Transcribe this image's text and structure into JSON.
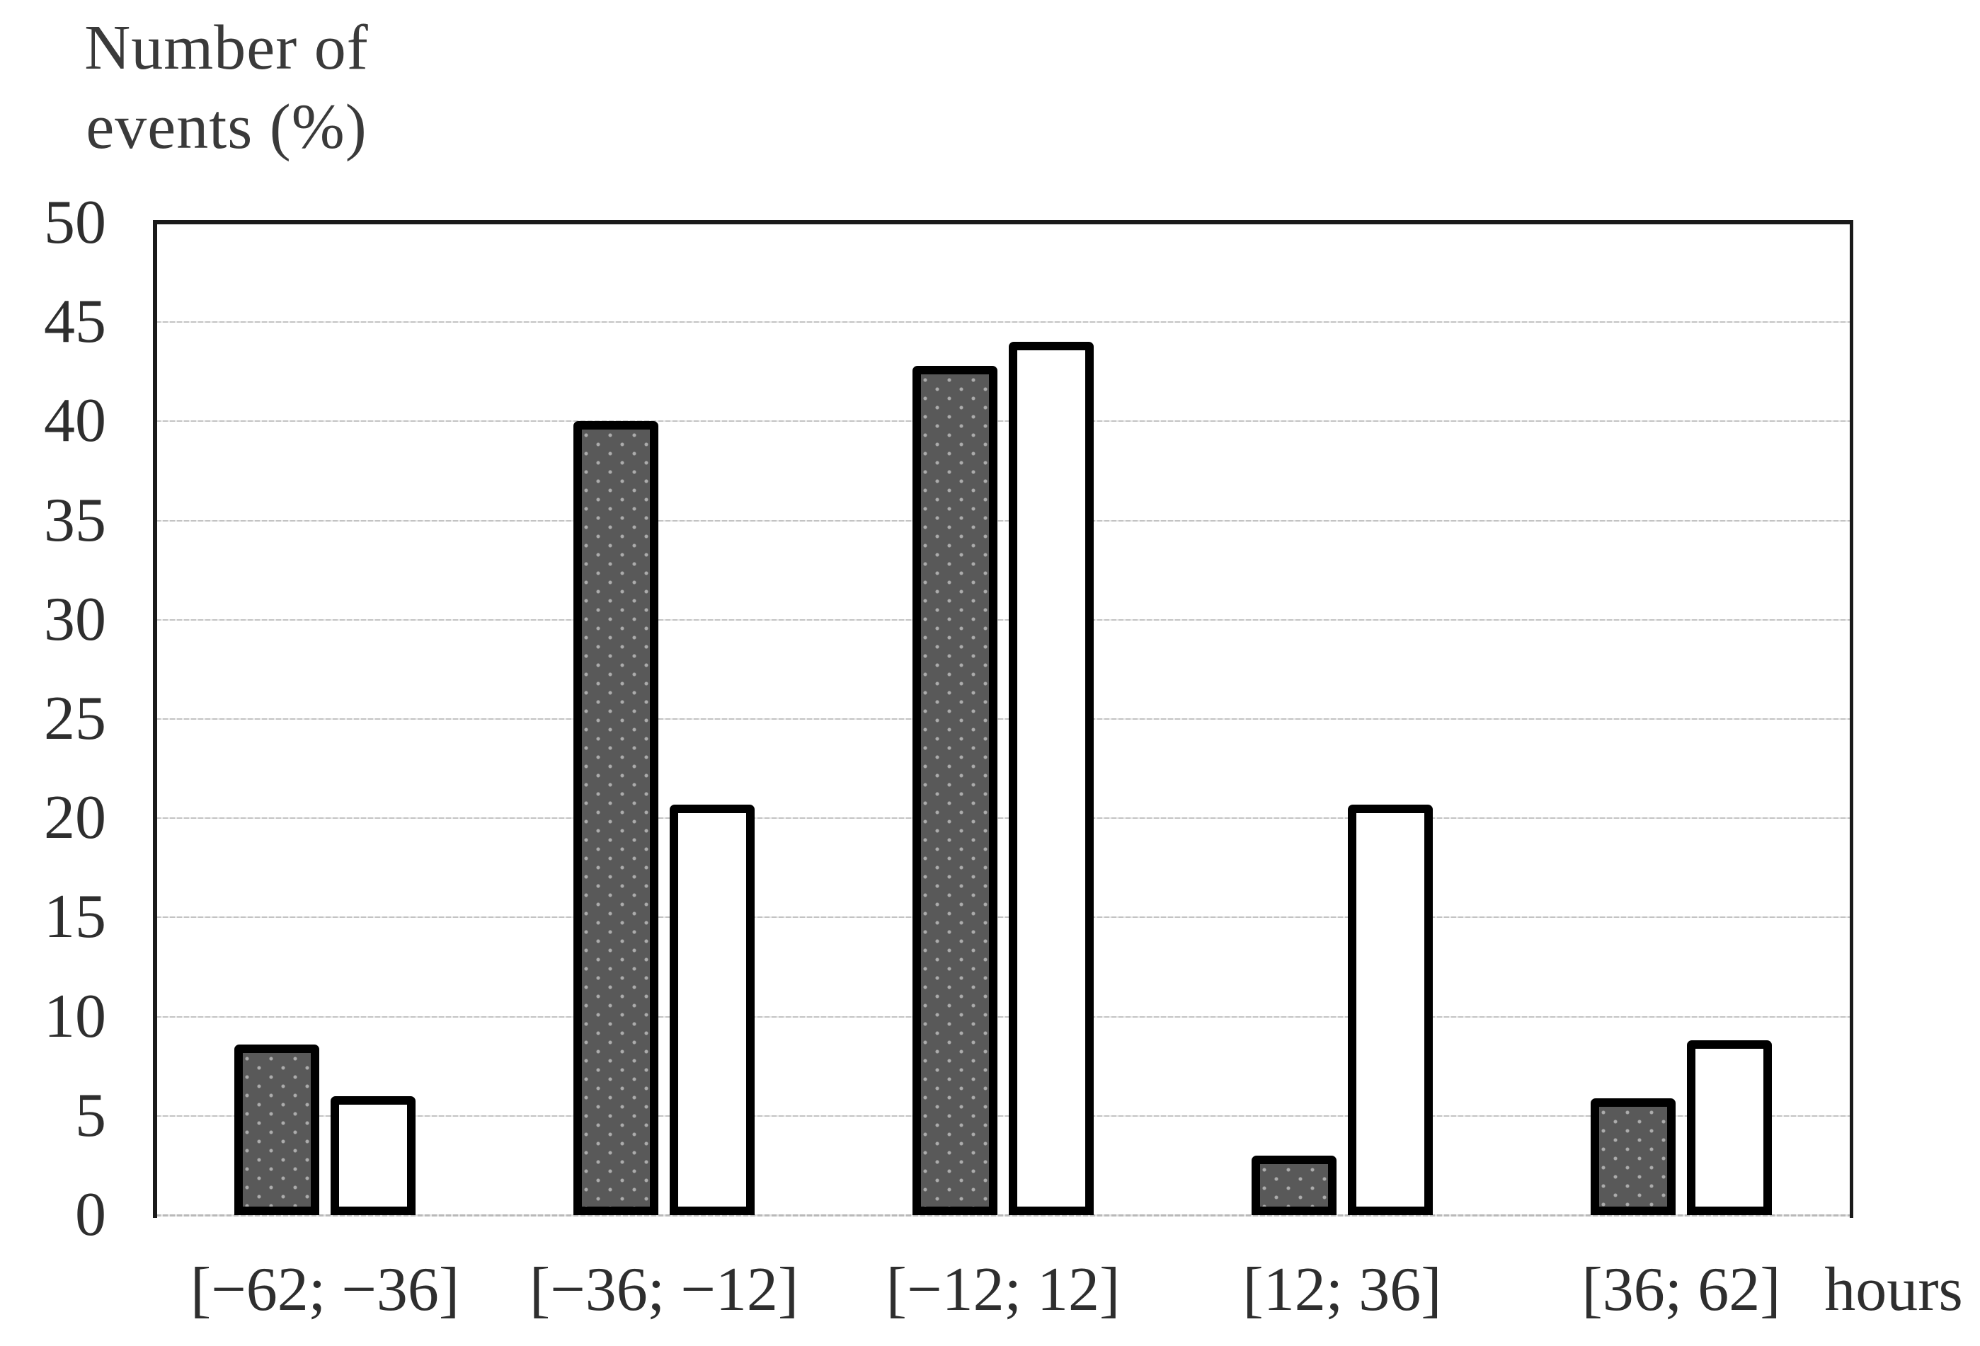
{
  "chart_data": {
    "type": "bar",
    "title": "",
    "y_axis": {
      "label_line1": "Number of",
      "label_line2": "events (%)",
      "min": 0,
      "max": 50,
      "tick_step": 5,
      "ticks": [
        0,
        5,
        10,
        15,
        20,
        25,
        30,
        35,
        40,
        45,
        50
      ]
    },
    "x_axis": {
      "categories": [
        "[−62; −36]",
        "[−36; −12]",
        "[−12; 12]",
        "[12; 36]",
        "[36; 62]"
      ],
      "unit_label": "hours"
    },
    "series": [
      {
        "name": "dark-filled-bars",
        "style": "filled",
        "fill": "#595959",
        "values": [
          8.6,
          40,
          42.8,
          3,
          5.9
        ]
      },
      {
        "name": "white-open-bars",
        "style": "open",
        "fill": "#ffffff",
        "values": [
          6,
          20.7,
          44,
          20.7,
          8.8
        ]
      }
    ],
    "grid": true,
    "legend": false
  },
  "colors": {
    "bar_border": "#000000",
    "dark_bar_fill": "#595959",
    "white_bar_fill": "#ffffff",
    "gridline": "#c9c9c9",
    "axis_line": "#1a1a1a",
    "text": "#2e2e2e",
    "background": "#ffffff"
  }
}
